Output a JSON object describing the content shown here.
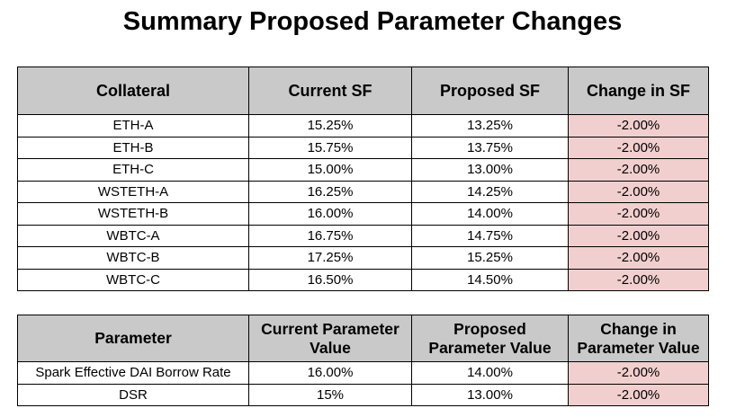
{
  "title": "Summary Proposed Parameter Changes",
  "table1": {
    "headers": [
      "Collateral",
      "Current SF",
      "Proposed SF",
      "Change in SF"
    ],
    "rows": [
      [
        "ETH-A",
        "15.25%",
        "13.25%",
        "-2.00%"
      ],
      [
        "ETH-B",
        "15.75%",
        "13.75%",
        "-2.00%"
      ],
      [
        "ETH-C",
        "15.00%",
        "13.00%",
        "-2.00%"
      ],
      [
        "WSTETH-A",
        "16.25%",
        "14.25%",
        "-2.00%"
      ],
      [
        "WSTETH-B",
        "16.00%",
        "14.00%",
        "-2.00%"
      ],
      [
        "WBTC-A",
        "16.75%",
        "14.75%",
        "-2.00%"
      ],
      [
        "WBTC-B",
        "17.25%",
        "15.25%",
        "-2.00%"
      ],
      [
        "WBTC-C",
        "16.50%",
        "14.50%",
        "-2.00%"
      ]
    ]
  },
  "table2": {
    "headers": [
      "Parameter",
      "Current Parameter Value",
      "Proposed Parameter Value",
      "Change in Parameter Value"
    ],
    "rows": [
      [
        "Spark Effective DAI Borrow Rate",
        "16.00%",
        "14.00%",
        "-2.00%"
      ],
      [
        "DSR",
        "15%",
        "13.00%",
        "-2.00%"
      ]
    ]
  }
}
